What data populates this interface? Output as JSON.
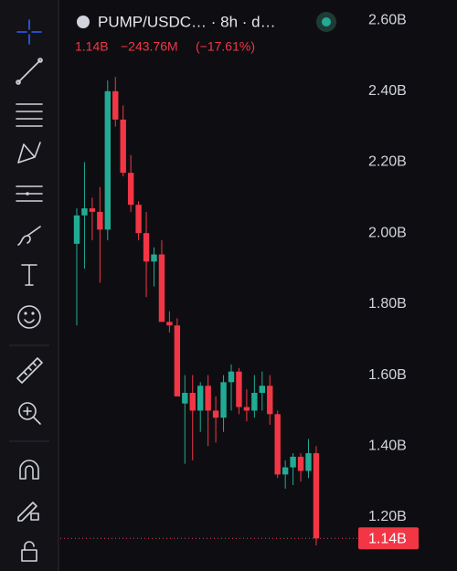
{
  "header": {
    "symbol": "PUMP/USDC… · 8h · d…",
    "last": "1.14B",
    "change": "−243.76M",
    "change_pct": "(−17.61%)"
  },
  "chart_data": {
    "type": "candlestick",
    "open": [
      1.97,
      2.05,
      2.07,
      2.06,
      2.01,
      2.4,
      2.32,
      2.17,
      2.08,
      2.0,
      1.92,
      1.94,
      1.75,
      1.74,
      1.52,
      1.55,
      1.5,
      1.57,
      1.5,
      1.48,
      1.58,
      1.61,
      1.51,
      1.5,
      1.55,
      1.57,
      1.49,
      1.32,
      1.34,
      1.37,
      1.33,
      1.38
    ],
    "high": [
      2.07,
      2.2,
      2.1,
      2.13,
      2.43,
      2.44,
      2.36,
      2.22,
      2.09,
      2.06,
      1.96,
      1.98,
      1.78,
      1.76,
      1.6,
      1.6,
      1.58,
      1.6,
      1.54,
      1.6,
      1.63,
      1.62,
      1.56,
      1.6,
      1.61,
      1.6,
      1.5,
      1.36,
      1.38,
      1.38,
      1.42,
      1.4
    ],
    "low": [
      1.74,
      1.9,
      1.98,
      1.86,
      1.98,
      2.3,
      2.16,
      2.06,
      1.98,
      1.82,
      1.85,
      1.75,
      1.72,
      1.54,
      1.35,
      1.36,
      1.44,
      1.4,
      1.41,
      1.44,
      1.5,
      1.49,
      1.47,
      1.48,
      1.5,
      1.46,
      1.31,
      1.28,
      1.29,
      1.3,
      1.31,
      1.12
    ],
    "close": [
      2.05,
      2.07,
      2.06,
      2.01,
      2.4,
      2.32,
      2.17,
      2.08,
      2.0,
      1.92,
      1.94,
      1.75,
      1.74,
      1.54,
      1.55,
      1.5,
      1.57,
      1.5,
      1.48,
      1.58,
      1.61,
      1.51,
      1.5,
      1.55,
      1.57,
      1.49,
      1.32,
      1.34,
      1.37,
      1.33,
      1.38,
      1.14
    ],
    "up_color": "#22ab94",
    "down_color": "#f23645",
    "ylim": [
      1.048,
      2.657
    ],
    "yticks": [
      {
        "value": 1.2,
        "label": "1.20B"
      },
      {
        "value": 1.4,
        "label": "1.40B"
      },
      {
        "value": 1.6,
        "label": "1.60B"
      },
      {
        "value": 1.8,
        "label": "1.80B"
      },
      {
        "value": 2.0,
        "label": "2.00B"
      },
      {
        "value": 2.2,
        "label": "2.20B"
      },
      {
        "value": 2.4,
        "label": "2.40B"
      },
      {
        "value": 2.6,
        "label": "2.60B"
      }
    ],
    "last_price": {
      "value": 1.14,
      "label": "1.14B"
    }
  }
}
